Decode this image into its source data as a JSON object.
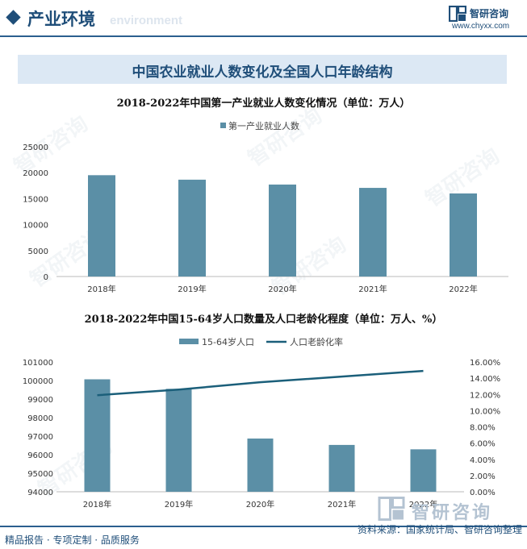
{
  "header": {
    "section_title": "产业环境",
    "section_subtitle": "environment",
    "brand_name": "智研咨询",
    "brand_url": "www.chyxx.com"
  },
  "main_title": "中国农业就业人数变化及全国人口年龄结构",
  "watermark_text": "智研咨询",
  "chart1": {
    "title": "2018-2022年中国第一产业就业人数变化情况（单位：万人）",
    "legend": "第一产业就业人数"
  },
  "chart2": {
    "title": "2018-2022年中国15-64岁人口数量及人口老龄化程度（单位：万人、%）",
    "legend_bar": "15-64岁人口",
    "legend_line": "人口老龄化率"
  },
  "footer": {
    "left": "精品报告 · 专项定制 · 品质服务",
    "right": "资料来源：国家统计局、智研咨询整理"
  },
  "colors": {
    "bar": "#5b8fa6",
    "line": "#1b5f7a",
    "primary": "#1f4e79"
  },
  "chart_data": [
    {
      "type": "bar",
      "categories": [
        "2018年",
        "2019年",
        "2020年",
        "2021年",
        "2022年"
      ],
      "series": [
        {
          "name": "第一产业就业人数",
          "values": [
            19515,
            18652,
            17715,
            17072,
            16000
          ]
        }
      ],
      "ylim": [
        0,
        25000
      ],
      "yticks": [
        "0",
        "5000",
        "10000",
        "15000",
        "20000",
        "25000"
      ],
      "grid": false,
      "legend_placement": "top"
    },
    {
      "type": "bar",
      "categories": [
        "2018年",
        "2019年",
        "2020年",
        "2021年",
        "2022年"
      ],
      "series": [
        {
          "name": "15-64岁人口",
          "type": "bar",
          "axis": "left",
          "values": [
            100065,
            99552,
            96871,
            96526,
            96289
          ]
        },
        {
          "name": "人口老龄化率",
          "type": "line",
          "axis": "right",
          "values": [
            11.9,
            12.6,
            13.5,
            14.2,
            14.9
          ]
        }
      ],
      "ylim": [
        94000,
        101000
      ],
      "yticks": [
        "94000",
        "95000",
        "96000",
        "97000",
        "98000",
        "99000",
        "100000",
        "101000"
      ],
      "y2lim": [
        0,
        16
      ],
      "y2ticks": [
        "0.00%",
        "2.00%",
        "4.00%",
        "6.00%",
        "8.00%",
        "10.00%",
        "12.00%",
        "14.00%",
        "16.00%"
      ],
      "grid": false,
      "legend_placement": "top"
    }
  ]
}
